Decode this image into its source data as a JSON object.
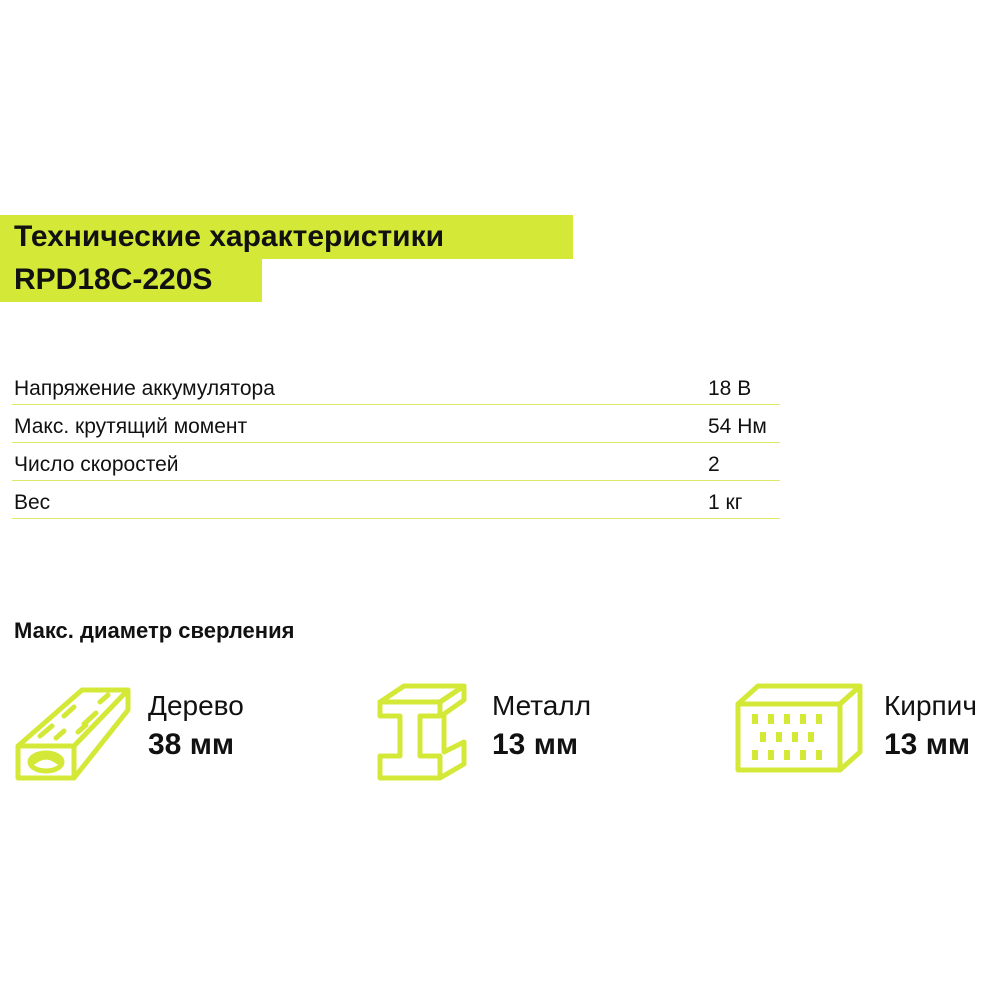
{
  "title": {
    "line1": "Технические характеристики",
    "line2": "RPD18C-220S"
  },
  "specs": [
    {
      "label": "Напряжение аккумулятора",
      "value": "18 В"
    },
    {
      "label": "Макс. крутящий момент",
      "value": "54 Нм"
    },
    {
      "label": "Число скоростей",
      "value": "2"
    },
    {
      "label": "Вес",
      "value": "1 кг"
    }
  ],
  "drilling": {
    "title": "Макс. диаметр сверления",
    "materials": [
      {
        "name": "Дерево",
        "value": "38 мм",
        "icon": "wood-plank-icon"
      },
      {
        "name": "Металл",
        "value": "13 мм",
        "icon": "steel-beam-icon"
      },
      {
        "name": "Кирпич",
        "value": "13 мм",
        "icon": "brick-icon"
      }
    ]
  },
  "colors": {
    "accent": "#d4e838",
    "divider": "#dbe86a",
    "text": "#111111"
  }
}
